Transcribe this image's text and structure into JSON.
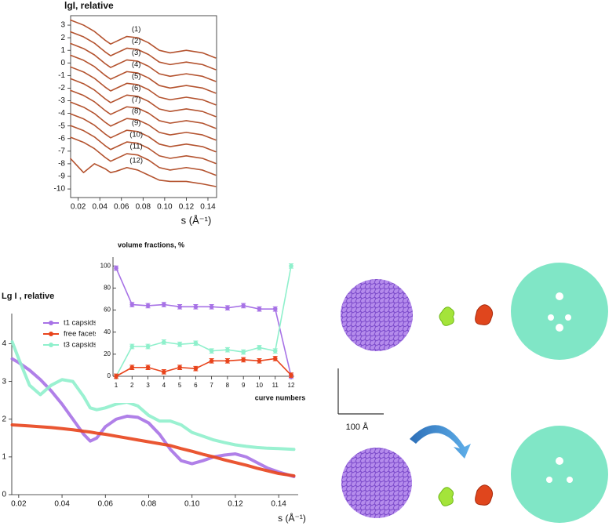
{
  "chart_data": [
    {
      "type": "line",
      "title": "lgI, relative",
      "x_label": "s (Å⁻¹)",
      "x": [
        0.013,
        0.025,
        0.035,
        0.045,
        0.05,
        0.055,
        0.065,
        0.075,
        0.085,
        0.095,
        0.105,
        0.12,
        0.135,
        0.147
      ],
      "xlim": [
        0.013,
        0.148
      ],
      "xticks": [
        0.02,
        0.04,
        0.06,
        0.08,
        {
          "value": 0.1,
          "label": "0.10"
        },
        0.12,
        0.14
      ],
      "ylim": [
        -10.68,
        3.75
      ],
      "yticks": [
        -10,
        -9,
        -8,
        -7,
        -6,
        -5,
        -4,
        -3,
        -2,
        -1,
        0,
        1,
        2,
        3
      ],
      "series": [
        {
          "name": "(1)",
          "color": "#b4532f",
          "values": [
            3.4,
            3.0,
            2.5,
            1.8,
            1.5,
            1.7,
            2.1,
            2.0,
            1.6,
            1.0,
            0.8,
            1.0,
            0.8,
            0.4
          ]
        },
        {
          "name": "(2)",
          "color": "#b4532f",
          "values": [
            2.47,
            2.07,
            1.57,
            0.87,
            0.57,
            0.77,
            1.17,
            1.07,
            0.67,
            0.07,
            -0.13,
            0.07,
            -0.13,
            -0.53
          ]
        },
        {
          "name": "(3)",
          "color": "#b4532f",
          "values": [
            1.54,
            1.14,
            0.64,
            -0.06,
            -0.36,
            -0.16,
            0.24,
            0.14,
            -0.26,
            -0.86,
            -1.06,
            -0.86,
            -1.06,
            -1.46
          ]
        },
        {
          "name": "(4)",
          "color": "#b4532f",
          "values": [
            0.61,
            0.21,
            -0.29,
            -0.99,
            -1.29,
            -1.09,
            -0.69,
            -0.79,
            -1.19,
            -1.79,
            -1.99,
            -1.79,
            -1.99,
            -2.39
          ]
        },
        {
          "name": "(5)",
          "color": "#b4532f",
          "values": [
            -0.32,
            -0.72,
            -1.22,
            -1.92,
            -2.22,
            -2.02,
            -1.62,
            -1.72,
            -2.12,
            -2.72,
            -2.92,
            -2.72,
            -2.92,
            -3.32
          ]
        },
        {
          "name": "(6)",
          "color": "#b4532f",
          "values": [
            -1.25,
            -1.65,
            -2.15,
            -2.85,
            -3.15,
            -2.95,
            -2.55,
            -2.65,
            -3.05,
            -3.65,
            -3.85,
            -3.65,
            -3.85,
            -4.25
          ]
        },
        {
          "name": "(7)",
          "color": "#b4532f",
          "values": [
            -2.18,
            -2.58,
            -3.08,
            -3.78,
            -4.08,
            -3.88,
            -3.48,
            -3.58,
            -3.98,
            -4.58,
            -4.78,
            -4.58,
            -4.78,
            -5.18
          ]
        },
        {
          "name": "(8)",
          "color": "#b4532f",
          "values": [
            -3.11,
            -3.51,
            -4.01,
            -4.71,
            -5.01,
            -4.81,
            -4.41,
            -4.51,
            -4.91,
            -5.51,
            -5.71,
            -5.51,
            -5.71,
            -6.11
          ]
        },
        {
          "name": "(9)",
          "color": "#b4532f",
          "values": [
            -4.04,
            -4.44,
            -4.94,
            -5.64,
            -5.94,
            -5.74,
            -5.34,
            -5.44,
            -5.84,
            -6.44,
            -6.64,
            -6.44,
            -6.64,
            -7.04
          ]
        },
        {
          "name": "(10)",
          "color": "#b4532f",
          "values": [
            -4.97,
            -5.37,
            -5.87,
            -6.57,
            -6.87,
            -6.67,
            -6.27,
            -6.37,
            -6.77,
            -7.37,
            -7.57,
            -7.37,
            -7.57,
            -7.97
          ]
        },
        {
          "name": "(11)",
          "color": "#b4532f",
          "values": [
            -5.9,
            -6.3,
            -6.8,
            -7.5,
            -7.8,
            -7.6,
            -7.2,
            -7.3,
            -7.7,
            -8.3,
            -8.5,
            -8.3,
            -8.5,
            -8.9
          ]
        },
        {
          "name": "(12)",
          "color": "#b4532f",
          "values": [
            -7.6,
            -8.7,
            -8.0,
            -8.4,
            -8.7,
            -8.6,
            -8.3,
            -8.5,
            -8.9,
            -9.3,
            -9.4,
            -9.4,
            -9.6,
            -9.8
          ]
        }
      ]
    },
    {
      "type": "line",
      "title": "Lg I , relative",
      "x_label": "s (Å⁻¹)",
      "legend": "upper left",
      "x": [
        0.017,
        0.02,
        0.025,
        0.03,
        0.035,
        0.04,
        0.045,
        0.05,
        0.053,
        0.056,
        0.06,
        0.065,
        0.07,
        0.075,
        0.08,
        0.085,
        0.09,
        0.095,
        0.1,
        0.105,
        0.11,
        0.115,
        0.12,
        0.125,
        0.13,
        0.135,
        0.14,
        0.147
      ],
      "xlim": [
        0.0168,
        0.149
      ],
      "xticks": [
        0.02,
        0.04,
        0.06,
        0.08,
        {
          "value": 0.1,
          "label": "0.10"
        },
        0.12,
        0.14
      ],
      "ylim": [
        0,
        4.8
      ],
      "yticks": [
        0,
        1,
        2,
        3,
        4
      ],
      "series": [
        {
          "name": "t1 capsids",
          "color": "#a772e6",
          "values": [
            3.6,
            3.5,
            3.3,
            3.05,
            2.75,
            2.4,
            2.0,
            1.6,
            1.42,
            1.5,
            1.8,
            2.0,
            2.08,
            2.05,
            1.9,
            1.6,
            1.2,
            0.9,
            0.82,
            0.9,
            1.0,
            1.05,
            1.08,
            1.0,
            0.85,
            0.7,
            0.6,
            0.48
          ]
        },
        {
          "name": "free facets",
          "color": "#e8441c",
          "values": [
            1.85,
            1.84,
            1.82,
            1.8,
            1.78,
            1.75,
            1.72,
            1.68,
            1.66,
            1.63,
            1.6,
            1.55,
            1.5,
            1.45,
            1.4,
            1.35,
            1.3,
            1.22,
            1.15,
            1.07,
            1.0,
            0.92,
            0.85,
            0.78,
            0.7,
            0.63,
            0.56,
            0.5
          ]
        },
        {
          "name": "t3 capsids",
          "color": "#8ff0cc",
          "values": [
            4.05,
            3.6,
            2.9,
            2.65,
            2.9,
            3.05,
            3.0,
            2.6,
            2.3,
            2.25,
            2.3,
            2.4,
            2.45,
            2.35,
            2.1,
            1.95,
            1.95,
            1.85,
            1.65,
            1.55,
            1.45,
            1.38,
            1.32,
            1.28,
            1.25,
            1.23,
            1.22,
            1.2
          ]
        }
      ]
    },
    {
      "type": "line",
      "title": "volume fractions, %",
      "x_label": "curve numbers",
      "x": [
        1,
        2,
        3,
        4,
        5,
        6,
        7,
        8,
        9,
        10,
        11,
        12
      ],
      "xlim": [
        1,
        12
      ],
      "xticks": [
        1,
        2,
        3,
        4,
        5,
        6,
        7,
        8,
        9,
        10,
        11,
        12
      ],
      "ylim": [
        0,
        108
      ],
      "yticks": [
        0,
        20,
        40,
        60,
        80,
        100
      ],
      "series": [
        {
          "name": "t1 capsids",
          "color": "#a772e6",
          "values": [
            98,
            65,
            64,
            65,
            63,
            63,
            63,
            62,
            64,
            61,
            61,
            0
          ],
          "errors": [
            2,
            2,
            2,
            2,
            2,
            2,
            2,
            2,
            2,
            2,
            2,
            2
          ]
        },
        {
          "name": "t3 capsids",
          "color": "#8ff0cc",
          "values": [
            0,
            27,
            27,
            31,
            29,
            30,
            23,
            24,
            22,
            26,
            23,
            100
          ],
          "errors": [
            2,
            2,
            2,
            2,
            2,
            2,
            2,
            2,
            2,
            2,
            2,
            2
          ]
        },
        {
          "name": "free facets",
          "color": "#e8441c",
          "values": [
            0,
            8,
            8,
            4,
            8,
            7,
            14,
            14,
            15,
            14,
            16,
            1
          ],
          "errors": [
            2,
            2,
            2,
            2,
            2,
            2,
            2,
            2,
            2,
            2,
            2,
            2
          ]
        }
      ]
    }
  ],
  "figure": {
    "scale_bar": "100 Å"
  }
}
